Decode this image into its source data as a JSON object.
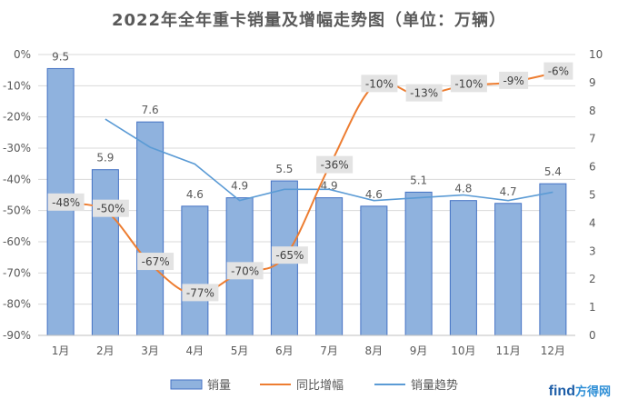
{
  "chart_data": {
    "type": "bar",
    "title": "2022年全年重卡销量及增幅走势图（单位：万辆）",
    "categories": [
      "1月",
      "2月",
      "3月",
      "4月",
      "5月",
      "6月",
      "7月",
      "8月",
      "9月",
      "10月",
      "11月",
      "12月"
    ],
    "series": [
      {
        "name": "销量",
        "type": "bar",
        "axis": "right",
        "color": "#8fb2de",
        "values": [
          9.5,
          5.9,
          7.6,
          4.6,
          4.9,
          5.5,
          4.9,
          4.6,
          5.1,
          4.8,
          4.7,
          5.4
        ],
        "labels": [
          "9.5",
          "5.9",
          "7.6",
          "4.6",
          "4.9",
          "5.5",
          "4.9",
          "4.6",
          "5.1",
          "4.8",
          "4.7",
          "5.4"
        ]
      },
      {
        "name": "同比增幅",
        "type": "line",
        "axis": "left",
        "color": "#ed7d31",
        "values": [
          -48,
          -50,
          -67,
          -77,
          -70,
          -65,
          -36,
          -10,
          -13,
          -10,
          -9,
          -6
        ],
        "labels": [
          "-48%",
          "-50%",
          "-67%",
          "-77%",
          "-70%",
          "-65%",
          "-36%",
          "-10%",
          "-13%",
          "-10%",
          "-9%",
          "-6%"
        ]
      },
      {
        "name": "销量趋势",
        "type": "line",
        "axis": "right",
        "color": "#5b9bd5",
        "values": [
          null,
          7.7,
          6.7,
          6.1,
          4.8,
          5.2,
          5.2,
          4.8,
          4.9,
          5.0,
          4.8,
          5.1
        ]
      }
    ],
    "y_left": {
      "ticks": [
        "0%",
        "-10%",
        "-20%",
        "-30%",
        "-40%",
        "-50%",
        "-60%",
        "-70%",
        "-80%",
        "-90%"
      ],
      "range": [
        -90,
        0
      ]
    },
    "y_right": {
      "ticks": [
        "10",
        "9",
        "8",
        "7",
        "6",
        "5",
        "4",
        "3",
        "2",
        "1",
        "0"
      ],
      "range": [
        0,
        10
      ]
    },
    "grid": true,
    "legend": "bottom"
  },
  "watermark": {
    "text1": "find",
    "text2": "方得网"
  }
}
